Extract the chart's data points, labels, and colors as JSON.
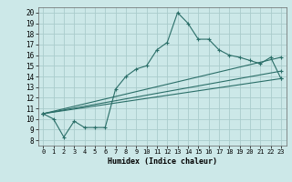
{
  "xlabel": "Humidex (Indice chaleur)",
  "background_color": "#cce8e8",
  "grid_color": "#aacccc",
  "line_color": "#2a6e68",
  "xlim": [
    -0.5,
    23.5
  ],
  "ylim": [
    7.5,
    20.5
  ],
  "xticks": [
    0,
    1,
    2,
    3,
    4,
    5,
    6,
    7,
    8,
    9,
    10,
    11,
    12,
    13,
    14,
    15,
    16,
    17,
    18,
    19,
    20,
    21,
    22,
    23
  ],
  "yticks": [
    8,
    9,
    10,
    11,
    12,
    13,
    14,
    15,
    16,
    17,
    18,
    19,
    20
  ],
  "series": [
    {
      "x": [
        0,
        1,
        2,
        3,
        4,
        5,
        6,
        7,
        8,
        9,
        10,
        11,
        12,
        13,
        14,
        15,
        16,
        17,
        18,
        19,
        20,
        21,
        22,
        23
      ],
      "y": [
        10.5,
        10.0,
        8.3,
        9.8,
        9.2,
        9.2,
        9.2,
        12.8,
        14.0,
        14.7,
        15.0,
        16.5,
        17.2,
        20.0,
        19.0,
        17.5,
        17.5,
        16.5,
        16.0,
        15.8,
        15.5,
        15.2,
        15.8,
        13.8
      ]
    },
    {
      "x": [
        0,
        23
      ],
      "y": [
        10.5,
        15.8
      ]
    },
    {
      "x": [
        0,
        23
      ],
      "y": [
        10.5,
        13.8
      ]
    },
    {
      "x": [
        0,
        23
      ],
      "y": [
        10.5,
        14.5
      ]
    }
  ]
}
